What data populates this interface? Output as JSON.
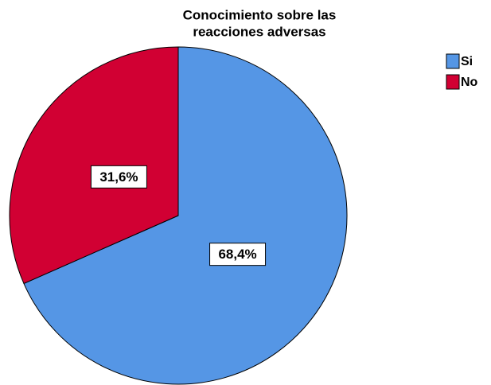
{
  "chart_data": {
    "type": "pie",
    "title": [
      "Conocimiento sobre las",
      "reacciones adversas"
    ],
    "categories": [
      "Si",
      "No"
    ],
    "values": [
      68.4,
      31.6
    ],
    "value_labels": [
      "68,4%",
      "31,6%"
    ],
    "colors": [
      "#5596e5",
      "#d10033"
    ],
    "legend": "upper right"
  }
}
